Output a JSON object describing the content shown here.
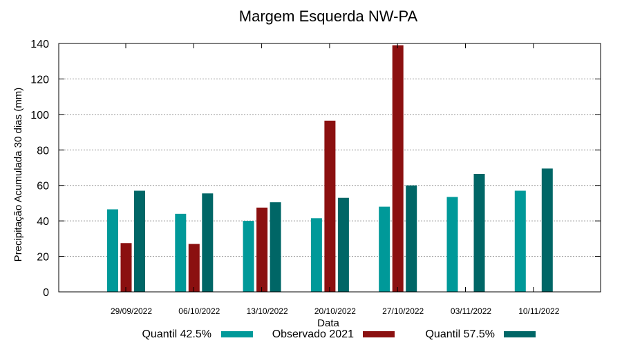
{
  "chart_data": {
    "type": "bar",
    "title": "Margem Esquerda NW-PA",
    "xlabel": "Data",
    "ylabel": "Precipitação Acumulada 30 dias (mm)",
    "ylim": [
      0,
      140
    ],
    "yticks": [
      0,
      20,
      40,
      60,
      80,
      100,
      120,
      140
    ],
    "grid": true,
    "legend_position": "bottom",
    "categories": [
      "29/09/2022",
      "06/10/2022",
      "13/10/2022",
      "20/10/2022",
      "27/10/2022",
      "03/11/2022",
      "10/11/2022"
    ],
    "series": [
      {
        "name": "Quantil 42.5%",
        "color": "#009999",
        "values": [
          46.5,
          44,
          40,
          41.5,
          48,
          53.5,
          57
        ]
      },
      {
        "name": "Observado 2021",
        "color": "#8b1010",
        "values": [
          27.5,
          27,
          47.5,
          96.5,
          139,
          null,
          null
        ]
      },
      {
        "name": "Quantil 57.5%",
        "color": "#006666",
        "values": [
          57,
          55.5,
          50.5,
          53,
          60,
          66.5,
          69.5
        ]
      }
    ]
  }
}
